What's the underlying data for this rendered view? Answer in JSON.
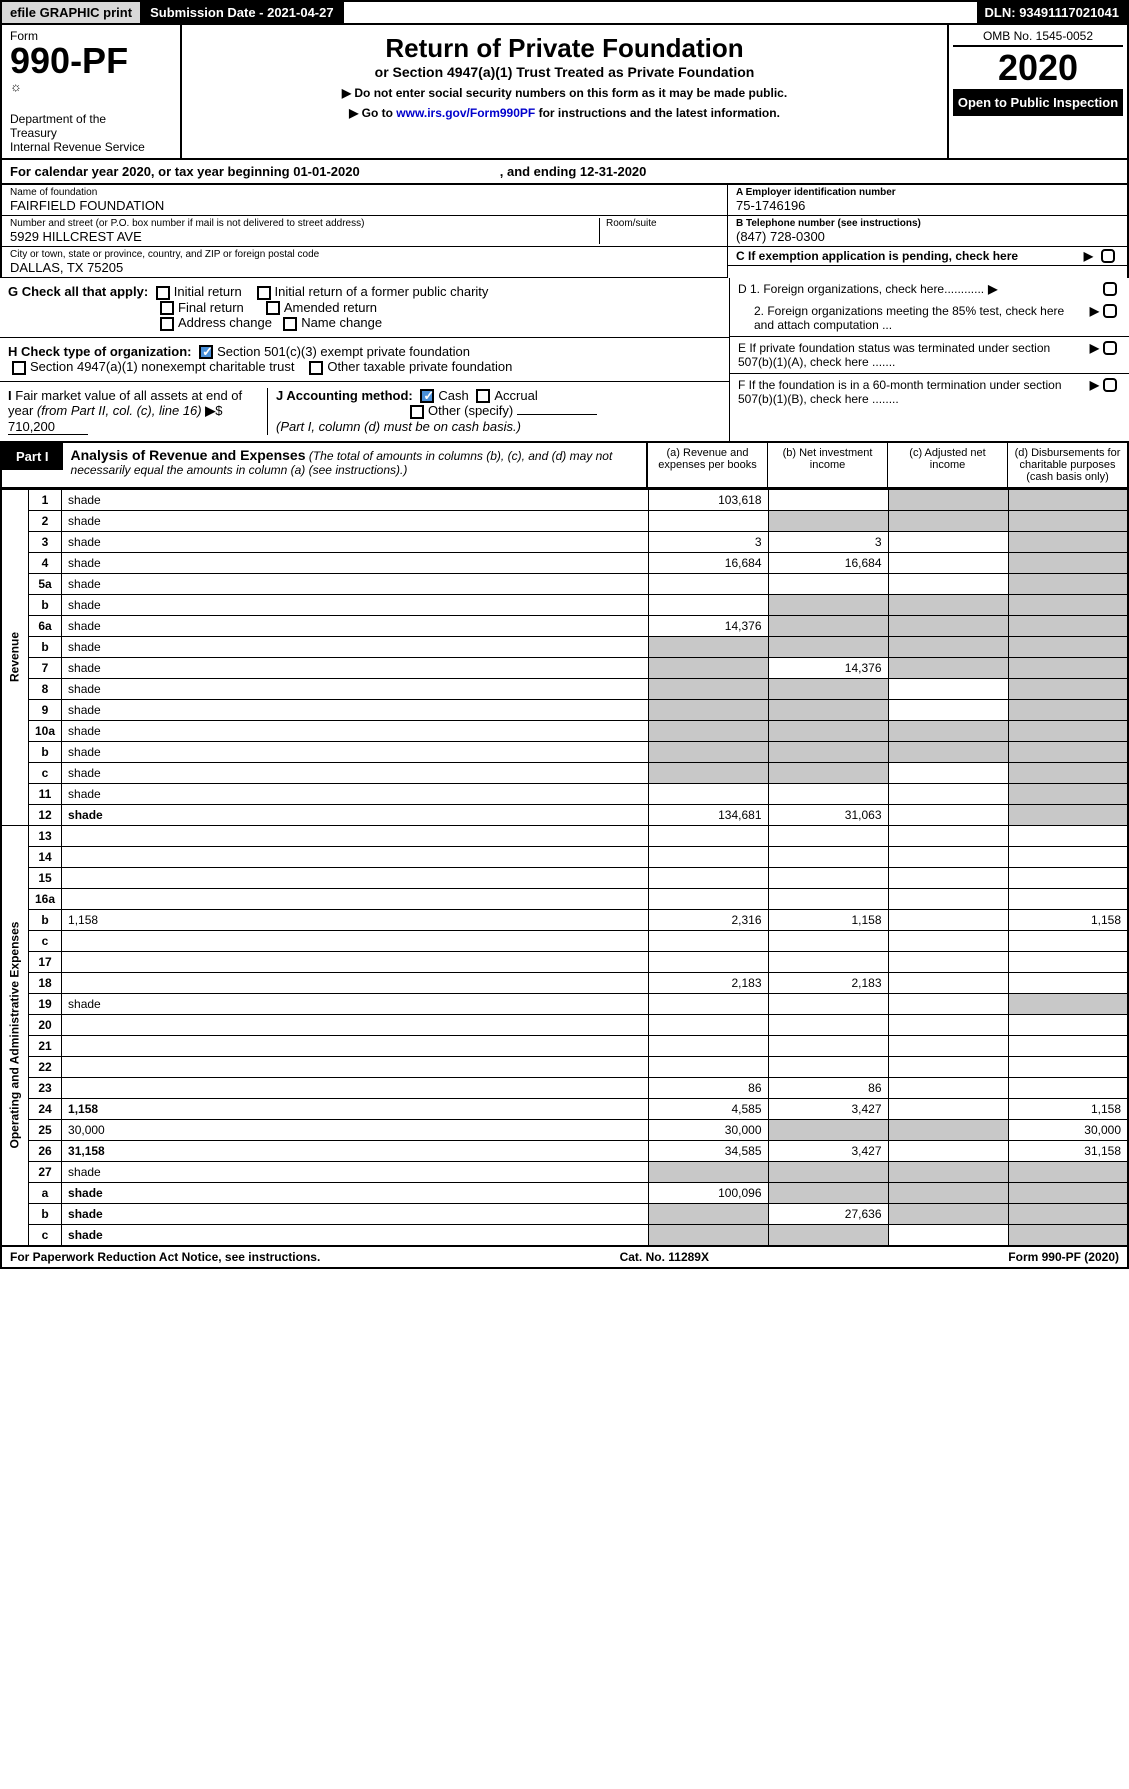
{
  "top": {
    "efile": "efile GRAPHIC print",
    "submission": "Submission Date - 2021-04-27",
    "dln": "DLN: 93491117021041"
  },
  "header": {
    "form_label": "Form",
    "form_number": "990-PF",
    "dept": "Department of the Treasury\nInternal Revenue Service",
    "title": "Return of Private Foundation",
    "subtitle": "or Section 4947(a)(1) Trust Treated as Private Foundation",
    "instr1": "▶ Do not enter social security numbers on this form as it may be made public.",
    "instr2": "▶ Go to www.irs.gov/Form990PF for instructions and the latest information.",
    "link": "www.irs.gov/Form990PF",
    "omb": "OMB No. 1545-0052",
    "year": "2020",
    "open": "Open to Public Inspection"
  },
  "cal": {
    "text": "For calendar year 2020, or tax year beginning 01-01-2020",
    "ending": ", and ending 12-31-2020"
  },
  "id": {
    "name_lbl": "Name of foundation",
    "name_val": "FAIRFIELD FOUNDATION",
    "addr_lbl": "Number and street (or P.O. box number if mail is not delivered to street address)",
    "addr_val": "5929 HILLCREST AVE",
    "room_lbl": "Room/suite",
    "city_lbl": "City or town, state or province, country, and ZIP or foreign postal code",
    "city_val": "DALLAS, TX  75205",
    "ein_lbl": "A Employer identification number",
    "ein_val": "75-1746196",
    "tel_lbl": "B Telephone number (see instructions)",
    "tel_val": "(847) 728-0300",
    "c_lbl": "C If exemption application is pending, check here"
  },
  "g": {
    "label": "G Check all that apply:",
    "opts": [
      "Initial return",
      "Initial return of a former public charity",
      "Final return",
      "Amended return",
      "Address change",
      "Name change"
    ]
  },
  "h": {
    "label": "H Check type of organization:",
    "opt1": "Section 501(c)(3) exempt private foundation",
    "opt2": "Section 4947(a)(1) nonexempt charitable trust",
    "opt3": "Other taxable private foundation"
  },
  "i": {
    "label": "I Fair market value of all assets at end of year (from Part II, col. (c), line 16)",
    "val": "710,200"
  },
  "j": {
    "label": "J Accounting method:",
    "cash": "Cash",
    "accrual": "Accrual",
    "other": "Other (specify)",
    "note": "(Part I, column (d) must be on cash basis.)"
  },
  "d": {
    "d1": "D 1. Foreign organizations, check here............",
    "d2": "2. Foreign organizations meeting the 85% test, check here and attach computation ...",
    "e": "E  If private foundation status was terminated under section 507(b)(1)(A), check here .......",
    "f": "F  If the foundation is in a 60-month termination under section 507(b)(1)(B), check here ........"
  },
  "part1": {
    "label": "Part I",
    "title": "Analysis of Revenue and Expenses",
    "note": "(The total of amounts in columns (b), (c), and (d) may not necessarily equal the amounts in column (a) (see instructions).)",
    "cols": {
      "a": "(a)   Revenue and expenses per books",
      "b": "(b)  Net investment income",
      "c": "(c)  Adjusted net income",
      "d": "(d)  Disbursements for charitable purposes (cash basis only)"
    }
  },
  "sections": {
    "revenue": "Revenue",
    "expenses": "Operating and Administrative Expenses"
  },
  "rows": [
    {
      "n": "1",
      "d": "shade",
      "a": "103,618",
      "b": "",
      "c": "shade"
    },
    {
      "n": "2",
      "d": "shade",
      "a": "",
      "b": "shade",
      "c": "shade"
    },
    {
      "n": "3",
      "d": "shade",
      "a": "3",
      "b": "3",
      "c": ""
    },
    {
      "n": "4",
      "d": "shade",
      "a": "16,684",
      "b": "16,684",
      "c": ""
    },
    {
      "n": "5a",
      "d": "shade",
      "a": "",
      "b": "",
      "c": ""
    },
    {
      "n": "b",
      "d": "shade",
      "a": "",
      "b": "shade",
      "c": "shade"
    },
    {
      "n": "6a",
      "d": "shade",
      "a": "14,376",
      "b": "shade",
      "c": "shade"
    },
    {
      "n": "b",
      "d": "shade",
      "a": "shade",
      "b": "shade",
      "c": "shade"
    },
    {
      "n": "7",
      "d": "shade",
      "a": "shade",
      "b": "14,376",
      "c": "shade"
    },
    {
      "n": "8",
      "d": "shade",
      "a": "shade",
      "b": "shade",
      "c": ""
    },
    {
      "n": "9",
      "d": "shade",
      "a": "shade",
      "b": "shade",
      "c": ""
    },
    {
      "n": "10a",
      "d": "shade",
      "a": "shade",
      "b": "shade",
      "c": "shade"
    },
    {
      "n": "b",
      "d": "shade",
      "a": "shade",
      "b": "shade",
      "c": "shade"
    },
    {
      "n": "c",
      "d": "shade",
      "a": "shade",
      "b": "shade",
      "c": ""
    },
    {
      "n": "11",
      "d": "shade",
      "a": "",
      "b": "",
      "c": ""
    },
    {
      "n": "12",
      "d": "shade",
      "a": "134,681",
      "b": "31,063",
      "c": "",
      "bold": true
    },
    {
      "n": "13",
      "d": "",
      "a": "",
      "b": "",
      "c": ""
    },
    {
      "n": "14",
      "d": "",
      "a": "",
      "b": "",
      "c": ""
    },
    {
      "n": "15",
      "d": "",
      "a": "",
      "b": "",
      "c": ""
    },
    {
      "n": "16a",
      "d": "",
      "a": "",
      "b": "",
      "c": ""
    },
    {
      "n": "b",
      "d": "1,158",
      "a": "2,316",
      "b": "1,158",
      "c": ""
    },
    {
      "n": "c",
      "d": "",
      "a": "",
      "b": "",
      "c": ""
    },
    {
      "n": "17",
      "d": "",
      "a": "",
      "b": "",
      "c": ""
    },
    {
      "n": "18",
      "d": "",
      "a": "2,183",
      "b": "2,183",
      "c": ""
    },
    {
      "n": "19",
      "d": "shade",
      "a": "",
      "b": "",
      "c": ""
    },
    {
      "n": "20",
      "d": "",
      "a": "",
      "b": "",
      "c": ""
    },
    {
      "n": "21",
      "d": "",
      "a": "",
      "b": "",
      "c": ""
    },
    {
      "n": "22",
      "d": "",
      "a": "",
      "b": "",
      "c": ""
    },
    {
      "n": "23",
      "d": "",
      "a": "86",
      "b": "86",
      "c": "",
      "icon": true
    },
    {
      "n": "24",
      "d": "1,158",
      "a": "4,585",
      "b": "3,427",
      "c": "",
      "bold": true
    },
    {
      "n": "25",
      "d": "30,000",
      "a": "30,000",
      "b": "shade",
      "c": "shade"
    },
    {
      "n": "26",
      "d": "31,158",
      "a": "34,585",
      "b": "3,427",
      "c": "",
      "bold": true
    },
    {
      "n": "27",
      "d": "shade",
      "a": "shade",
      "b": "shade",
      "c": "shade"
    },
    {
      "n": "a",
      "d": "shade",
      "a": "100,096",
      "b": "shade",
      "c": "shade",
      "bold": true
    },
    {
      "n": "b",
      "d": "shade",
      "a": "shade",
      "b": "27,636",
      "c": "shade",
      "bold": true
    },
    {
      "n": "c",
      "d": "shade",
      "a": "shade",
      "b": "shade",
      "c": "",
      "bold": true
    }
  ],
  "footer": {
    "left": "For Paperwork Reduction Act Notice, see instructions.",
    "mid": "Cat. No. 11289X",
    "right": "Form 990-PF (2020)"
  }
}
